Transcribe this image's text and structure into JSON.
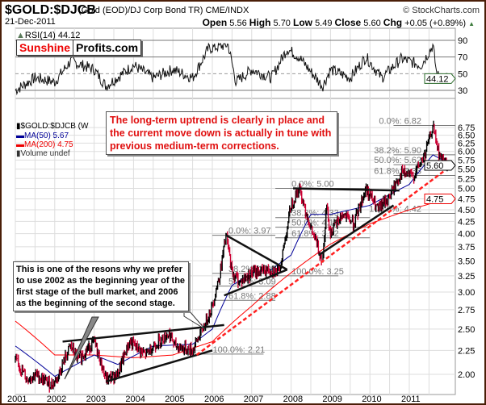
{
  "header": {
    "title": "$GOLD:$DJCB",
    "subtitle": "(Gold (EOD)/DJ Corp Bond TR)",
    "exchange": "CME/INDX",
    "copyright": "© StockCharts.com",
    "date": "21-Dec-2011",
    "open_label": "Open",
    "open": "5.56",
    "high_label": "High",
    "high": "5.70",
    "low_label": "Low",
    "low": "5.49",
    "close_label": "Close",
    "close": "5.60",
    "chg_label": "Chg",
    "chg": "+0.05 (+0.89%)"
  },
  "logo": {
    "part1": "Sunshine",
    "part2": "Profits.com"
  },
  "rsi_panel": {
    "label": "RSI(14) 44.12",
    "current": "44.12",
    "ticks": [
      90,
      70,
      50,
      30
    ]
  },
  "legend": {
    "symbol": "$GOLD:$DJCB (W",
    "ma50": "MA(50) 5.67",
    "ma200": "MA(200) 4.75",
    "volume": "Volume undef"
  },
  "annotations": {
    "top": "The long-term uptrend is clearly in place and the current move down is actually in tune with previous medium-term corrections.",
    "bottom": "This is one of the resons why we prefer to use 2002 as the beginning year of the first stage of the bull market, and 2006 as the beginning of the second stage."
  },
  "colors": {
    "up": "#000000",
    "down": "#cc0033",
    "ma50": "#000099",
    "ma200": "#ff0000",
    "dashed_trend": "#ff2020",
    "rsi_fill": "#5a7a5a",
    "frame": "#4a1e08"
  },
  "chart_data": {
    "type": "line",
    "y_scale": "log",
    "ylim": [
      1.88,
      7.0
    ],
    "grid": true,
    "x_ticks": [
      "2001",
      "2002",
      "2003",
      "2004",
      "2005",
      "2006",
      "2007",
      "2008",
      "2009",
      "2010",
      "2011"
    ],
    "y_ticks": [
      "2.00",
      "2.25",
      "2.50",
      "2.75",
      "3.00",
      "3.25",
      "3.50",
      "3.75",
      "4.00",
      "4.25",
      "4.50",
      "4.75",
      "5.00",
      "5.25",
      "5.50",
      "5.75",
      "6.00",
      "6.25",
      "6.50",
      "6.75"
    ],
    "price": [
      [
        2001.0,
        2.15
      ],
      [
        2001.3,
        1.95
      ],
      [
        2001.5,
        2.0
      ],
      [
        2001.9,
        1.9
      ],
      [
        2002.05,
        1.95
      ],
      [
        2002.4,
        2.3
      ],
      [
        2002.6,
        2.15
      ],
      [
        2003.0,
        2.35
      ],
      [
        2003.3,
        1.95
      ],
      [
        2003.6,
        2.0
      ],
      [
        2003.9,
        2.35
      ],
      [
        2004.3,
        2.2
      ],
      [
        2004.5,
        2.3
      ],
      [
        2004.9,
        2.45
      ],
      [
        2005.05,
        2.3
      ],
      [
        2005.5,
        2.25
      ],
      [
        2005.8,
        2.55
      ],
      [
        2006.0,
        2.8
      ],
      [
        2006.2,
        3.3
      ],
      [
        2006.35,
        3.97
      ],
      [
        2006.5,
        3.3
      ],
      [
        2006.7,
        3.15
      ],
      [
        2007.0,
        3.3
      ],
      [
        2007.5,
        3.35
      ],
      [
        2007.7,
        3.3
      ],
      [
        2007.85,
        3.9
      ],
      [
        2008.0,
        4.6
      ],
      [
        2008.2,
        5.0
      ],
      [
        2008.5,
        4.1
      ],
      [
        2008.8,
        3.5
      ],
      [
        2008.9,
        4.6
      ],
      [
        2009.0,
        4.0
      ],
      [
        2009.3,
        4.4
      ],
      [
        2009.6,
        4.2
      ],
      [
        2009.9,
        5.0
      ],
      [
        2010.2,
        4.5
      ],
      [
        2010.5,
        4.8
      ],
      [
        2010.8,
        5.4
      ],
      [
        2011.1,
        5.3
      ],
      [
        2011.4,
        5.9
      ],
      [
        2011.6,
        6.8
      ],
      [
        2011.75,
        5.9
      ],
      [
        2011.97,
        5.6
      ]
    ],
    "ma50": [
      [
        2001.0,
        2.3
      ],
      [
        2002.0,
        1.98
      ],
      [
        2003.0,
        2.2
      ],
      [
        2003.6,
        2.1
      ],
      [
        2004.5,
        2.3
      ],
      [
        2005.5,
        2.32
      ],
      [
        2006.0,
        2.5
      ],
      [
        2006.5,
        3.1
      ],
      [
        2007.0,
        3.3
      ],
      [
        2007.5,
        3.35
      ],
      [
        2008.0,
        3.6
      ],
      [
        2008.5,
        4.4
      ],
      [
        2009.0,
        4.4
      ],
      [
        2010.0,
        4.6
      ],
      [
        2011.0,
        5.1
      ],
      [
        2011.6,
        5.9
      ],
      [
        2011.97,
        5.67
      ]
    ],
    "ma200": [
      [
        2001.0,
        2.6
      ],
      [
        2002.0,
        2.2
      ],
      [
        2003.0,
        2.2
      ],
      [
        2004.0,
        2.17
      ],
      [
        2005.0,
        2.2
      ],
      [
        2006.0,
        2.35
      ],
      [
        2007.0,
        2.8
      ],
      [
        2008.0,
        3.3
      ],
      [
        2009.0,
        3.8
      ],
      [
        2010.0,
        4.2
      ],
      [
        2011.0,
        4.5
      ],
      [
        2011.97,
        4.75
      ]
    ],
    "rsi": [
      [
        2001.0,
        30
      ],
      [
        2001.5,
        45
      ],
      [
        2002.0,
        40
      ],
      [
        2002.4,
        65
      ],
      [
        2003.0,
        55
      ],
      [
        2003.3,
        35
      ],
      [
        2004.0,
        60
      ],
      [
        2004.5,
        45
      ],
      [
        2005.0,
        55
      ],
      [
        2005.5,
        45
      ],
      [
        2005.9,
        80
      ],
      [
        2006.4,
        85
      ],
      [
        2006.6,
        40
      ],
      [
        2007.0,
        55
      ],
      [
        2007.5,
        45
      ],
      [
        2007.9,
        80
      ],
      [
        2008.2,
        70
      ],
      [
        2008.8,
        35
      ],
      [
        2009.0,
        55
      ],
      [
        2009.5,
        45
      ],
      [
        2009.9,
        70
      ],
      [
        2010.3,
        45
      ],
      [
        2010.8,
        68
      ],
      [
        2011.3,
        60
      ],
      [
        2011.6,
        84
      ],
      [
        2011.7,
        48
      ],
      [
        2011.97,
        44.12
      ]
    ],
    "trendlines": [
      [
        [
          2002.2,
          2.35
        ],
        [
          2006.3,
          2.55
        ]
      ],
      [
        [
          2003.3,
          1.93
        ],
        [
          2006.0,
          2.25
        ]
      ],
      [
        [
          2006.35,
          3.97
        ],
        [
          2007.9,
          3.35
        ]
      ],
      [
        [
          2006.3,
          2.95
        ],
        [
          2007.9,
          3.35
        ]
      ],
      [
        [
          2008.05,
          5.0
        ],
        [
          2010.75,
          4.95
        ]
      ],
      [
        [
          2008.7,
          3.6
        ],
        [
          2010.6,
          4.6
        ]
      ]
    ],
    "dashed_trend": [
      [
        2005.6,
        2.2
      ],
      [
        2011.95,
        5.5
      ]
    ],
    "fibonacci": [
      {
        "levels": [
          {
            "label": "0.0%: 3.97",
            "value": 3.97
          },
          {
            "label": "38.2%: 3.29",
            "value": 3.29
          },
          {
            "label": "50.0%: 3.09",
            "value": 3.09
          },
          {
            "label": "61.8%: 2.88",
            "value": 2.88
          }
        ],
        "x": [
          2006.0,
          2007.6
        ]
      },
      {
        "levels": [
          {
            "label": "100.0%: 2.21",
            "value": 2.21
          }
        ],
        "x": [
          2005.6,
          2007.3
        ]
      },
      {
        "levels": [
          {
            "label": "0.0%: 5.00",
            "value": 5.0
          },
          {
            "label": "38.2%: 4.33",
            "value": 4.33
          },
          {
            "label": "50.0%: 4.13",
            "value": 4.13
          },
          {
            "label": "61.8%: 3.92",
            "value": 3.92
          }
        ],
        "x": [
          2007.6,
          2010.0
        ]
      },
      {
        "levels": [
          {
            "label": "100.0%: 3.25",
            "value": 3.25
          }
        ],
        "x": [
          2007.6,
          2009.2
        ]
      },
      {
        "levels": [
          {
            "label": "0.0%: 6.82",
            "value": 6.82
          },
          {
            "label": "38.2%: 5.90",
            "value": 5.9
          },
          {
            "label": "50.0%: 5.62",
            "value": 5.62
          },
          {
            "label": "61.8%: 5.33",
            "value": 5.33
          },
          {
            "label": "100.0%: 4.42",
            "value": 4.42
          }
        ],
        "x": [
          2010.6,
          2012.2
        ]
      }
    ],
    "markers": {
      "price": "5.60",
      "ma200": "4.75"
    }
  }
}
